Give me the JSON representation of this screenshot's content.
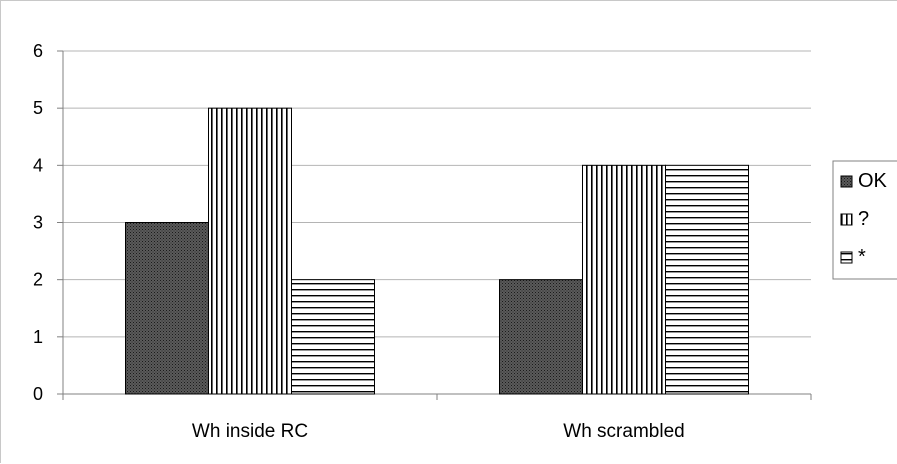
{
  "chart_data": {
    "type": "bar",
    "title": "",
    "xlabel": "",
    "ylabel": "",
    "categories": [
      "Wh inside RC",
      "Wh scrambled"
    ],
    "series": [
      {
        "name": "OK",
        "values": [
          3,
          2
        ],
        "pattern": "dense-grid",
        "color": "#444444"
      },
      {
        "name": "?",
        "values": [
          5,
          4
        ],
        "pattern": "vertical-lines",
        "color": "#000000"
      },
      {
        "name": "*",
        "values": [
          2,
          4
        ],
        "pattern": "horizontal-lines",
        "color": "#000000"
      }
    ],
    "ylim": [
      0,
      6
    ],
    "yticks": [
      "0",
      "1",
      "2",
      "3",
      "4",
      "5",
      "6"
    ],
    "grid": true,
    "legend_position": "right"
  }
}
